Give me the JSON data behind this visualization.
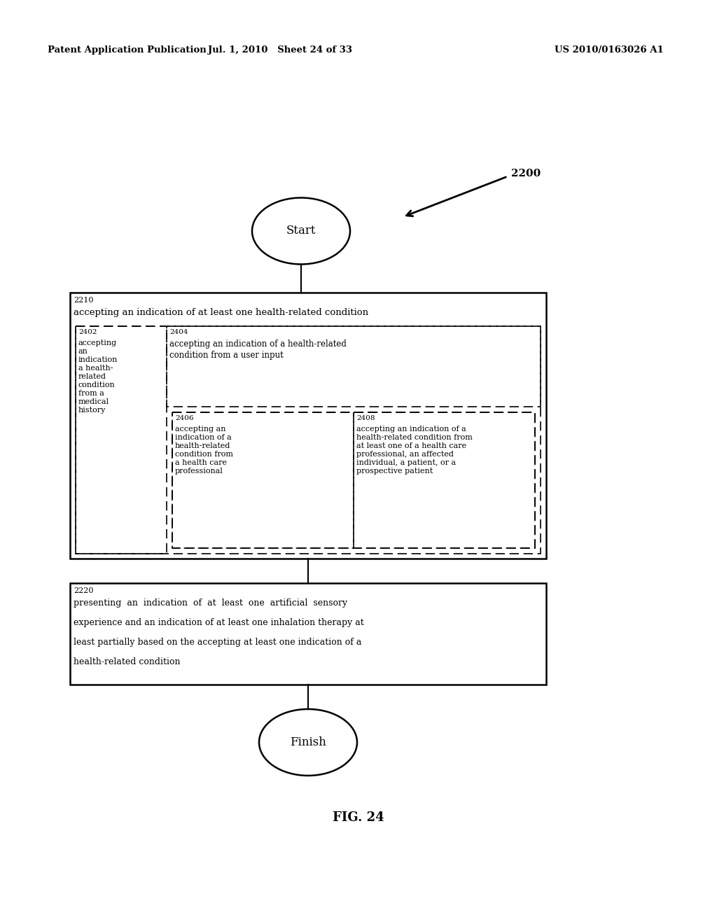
{
  "header_left": "Patent Application Publication",
  "header_mid": "Jul. 1, 2010   Sheet 24 of 33",
  "header_right": "US 2010/0163026 A1",
  "fig_label": "FIG. 24",
  "diagram_label": "2200",
  "start_label": "Start",
  "finish_label": "Finish",
  "box2210_id": "2210",
  "box2210_text": "accepting an indication of at least one health-related condition",
  "box2220_id": "2220",
  "box2220_text_line1": "presenting  an  indication  of  at  least  one  artificial  sensory",
  "box2220_text_line2": "experience and an indication of at least one inhalation therapy at",
  "box2220_text_line3": "least partially based on the accepting at least one indication of a",
  "box2220_text_line4": "health-related condition",
  "box2402_id": "2402",
  "box2404_id": "2404",
  "box2406_id": "2406",
  "box2408_id": "2408",
  "bg_color": "#ffffff",
  "line_color": "#000000",
  "text_color": "#000000"
}
